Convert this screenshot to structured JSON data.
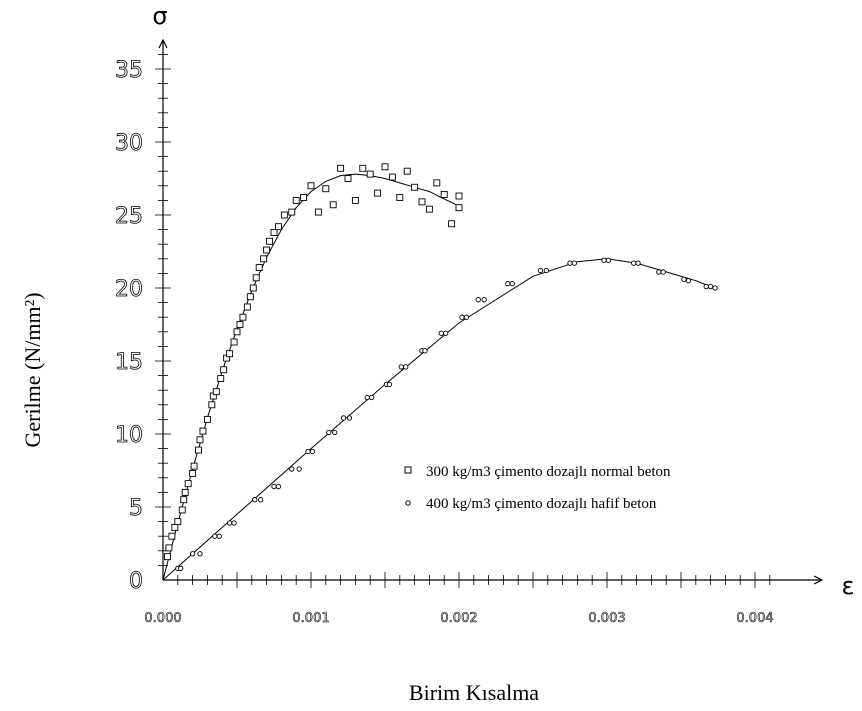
{
  "chart_data": {
    "type": "scatter",
    "title": "",
    "xlabel": "Birim Kısalma",
    "ylabel": "Gerilme (N/mm²)",
    "x_axis_symbol": "ε",
    "y_axis_symbol": "σ",
    "xlim": [
      0,
      0.0045
    ],
    "ylim": [
      0,
      37
    ],
    "x_ticks": [
      "0.000",
      "0.001",
      "0.002",
      "0.003",
      "0.004"
    ],
    "x_tick_values": [
      0,
      0.001,
      0.002,
      0.003,
      0.004
    ],
    "y_ticks": [
      "0",
      "5",
      "10",
      "15",
      "20",
      "25",
      "30",
      "35"
    ],
    "y_tick_values": [
      0,
      5,
      10,
      15,
      20,
      25,
      30,
      35
    ],
    "grid": false,
    "legend_position": "center-right",
    "series": [
      {
        "name": "300 kg/m3 çimento dozajlı normal beton",
        "marker": "square",
        "points": [
          [
            3e-05,
            1.6
          ],
          [
            4e-05,
            2.2
          ],
          [
            6e-05,
            3.0
          ],
          [
            8e-05,
            3.6
          ],
          [
            0.0001,
            4.0
          ],
          [
            0.00013,
            4.8
          ],
          [
            0.00014,
            5.5
          ],
          [
            0.00015,
            6.0
          ],
          [
            0.00017,
            6.6
          ],
          [
            0.0002,
            7.3
          ],
          [
            0.00021,
            7.8
          ],
          [
            0.00024,
            8.9
          ],
          [
            0.00025,
            9.6
          ],
          [
            0.00027,
            10.2
          ],
          [
            0.0003,
            11.0
          ],
          [
            0.00033,
            12.0
          ],
          [
            0.00034,
            12.6
          ],
          [
            0.00036,
            12.9
          ],
          [
            0.00039,
            13.8
          ],
          [
            0.00041,
            14.4
          ],
          [
            0.00043,
            15.2
          ],
          [
            0.00045,
            15.5
          ],
          [
            0.00048,
            16.3
          ],
          [
            0.0005,
            17.0
          ],
          [
            0.00052,
            17.5
          ],
          [
            0.00054,
            18.0
          ],
          [
            0.00057,
            18.7
          ],
          [
            0.00059,
            19.4
          ],
          [
            0.00061,
            20.0
          ],
          [
            0.00063,
            20.7
          ],
          [
            0.00065,
            21.4
          ],
          [
            0.00068,
            22.0
          ],
          [
            0.0007,
            22.6
          ],
          [
            0.00072,
            23.2
          ],
          [
            0.00075,
            23.8
          ],
          [
            0.00078,
            24.2
          ],
          [
            0.00082,
            25.0
          ],
          [
            0.00087,
            25.2
          ],
          [
            0.0009,
            26.0
          ],
          [
            0.00095,
            26.2
          ],
          [
            0.001,
            27.0
          ],
          [
            0.00105,
            25.2
          ],
          [
            0.0011,
            26.8
          ],
          [
            0.00115,
            25.7
          ],
          [
            0.0012,
            28.2
          ],
          [
            0.00125,
            27.5
          ],
          [
            0.0013,
            26.0
          ],
          [
            0.00135,
            28.2
          ],
          [
            0.0014,
            27.8
          ],
          [
            0.00145,
            26.5
          ],
          [
            0.0015,
            28.3
          ],
          [
            0.00155,
            27.6
          ],
          [
            0.0016,
            26.2
          ],
          [
            0.00165,
            28.0
          ],
          [
            0.0017,
            26.9
          ],
          [
            0.00175,
            25.9
          ],
          [
            0.0018,
            25.4
          ],
          [
            0.00185,
            27.2
          ],
          [
            0.0019,
            26.4
          ],
          [
            0.00195,
            24.4
          ],
          [
            0.002,
            26.3
          ],
          [
            0.002,
            25.5
          ]
        ]
      },
      {
        "name": "400 kg/m3 çimento dozajlı hafif beton",
        "marker": "circle",
        "points": [
          [
            0.0001,
            0.8
          ],
          [
            0.00012,
            0.8
          ],
          [
            0.0002,
            1.8
          ],
          [
            0.00025,
            1.8
          ],
          [
            0.00035,
            3.0
          ],
          [
            0.00038,
            3.0
          ],
          [
            0.00045,
            3.9
          ],
          [
            0.00048,
            3.9
          ],
          [
            0.00062,
            5.5
          ],
          [
            0.00066,
            5.5
          ],
          [
            0.00075,
            6.4
          ],
          [
            0.00078,
            6.4
          ],
          [
            0.00087,
            7.6
          ],
          [
            0.00092,
            7.6
          ],
          [
            0.00098,
            8.8
          ],
          [
            0.00101,
            8.8
          ],
          [
            0.00112,
            10.1
          ],
          [
            0.00116,
            10.1
          ],
          [
            0.00122,
            11.1
          ],
          [
            0.00126,
            11.1
          ],
          [
            0.00138,
            12.5
          ],
          [
            0.00141,
            12.5
          ],
          [
            0.00151,
            13.4
          ],
          [
            0.00153,
            13.4
          ],
          [
            0.00161,
            14.6
          ],
          [
            0.00164,
            14.6
          ],
          [
            0.00175,
            15.7
          ],
          [
            0.00177,
            15.7
          ],
          [
            0.00188,
            16.9
          ],
          [
            0.00191,
            16.9
          ],
          [
            0.00202,
            18.0
          ],
          [
            0.00205,
            18.0
          ],
          [
            0.00213,
            19.2
          ],
          [
            0.00217,
            19.2
          ],
          [
            0.00233,
            20.3
          ],
          [
            0.00236,
            20.3
          ],
          [
            0.00255,
            21.2
          ],
          [
            0.00259,
            21.2
          ],
          [
            0.00275,
            21.7
          ],
          [
            0.00278,
            21.7
          ],
          [
            0.00298,
            21.9
          ],
          [
            0.00301,
            21.9
          ],
          [
            0.00318,
            21.7
          ],
          [
            0.00321,
            21.7
          ],
          [
            0.00335,
            21.1
          ],
          [
            0.00338,
            21.1
          ],
          [
            0.00352,
            20.6
          ],
          [
            0.00355,
            20.5
          ],
          [
            0.00367,
            20.1
          ],
          [
            0.0037,
            20.1
          ],
          [
            0.00373,
            20.0
          ]
        ]
      }
    ],
    "fit_curves": [
      {
        "series": "300 kg/m3 çimento dozajlı normal beton",
        "points": [
          [
            0,
            0
          ],
          [
            0.0001,
            3.9
          ],
          [
            0.0002,
            7.6
          ],
          [
            0.0003,
            11.1
          ],
          [
            0.0004,
            14.3
          ],
          [
            0.0005,
            17.2
          ],
          [
            0.0006,
            19.8
          ],
          [
            0.0007,
            22.1
          ],
          [
            0.0008,
            24.0
          ],
          [
            0.0009,
            25.5
          ],
          [
            0.001,
            26.6
          ],
          [
            0.0011,
            27.3
          ],
          [
            0.0012,
            27.7
          ],
          [
            0.0013,
            27.8
          ],
          [
            0.0014,
            27.7
          ],
          [
            0.0015,
            27.5
          ],
          [
            0.0016,
            27.2
          ],
          [
            0.0017,
            26.9
          ],
          [
            0.0018,
            26.6
          ],
          [
            0.0019,
            26.1
          ],
          [
            0.002,
            25.6
          ]
        ]
      },
      {
        "series": "400 kg/m3 çimento dozajlı hafif beton",
        "points": [
          [
            0,
            0
          ],
          [
            0.0005,
            4.5
          ],
          [
            0.001,
            9.0
          ],
          [
            0.0015,
            13.4
          ],
          [
            0.002,
            17.6
          ],
          [
            0.0025,
            20.8
          ],
          [
            0.0028,
            21.8
          ],
          [
            0.003,
            22.0
          ],
          [
            0.0032,
            21.7
          ],
          [
            0.0034,
            21.1
          ],
          [
            0.0036,
            20.5
          ],
          [
            0.0037,
            20.1
          ]
        ]
      }
    ]
  }
}
